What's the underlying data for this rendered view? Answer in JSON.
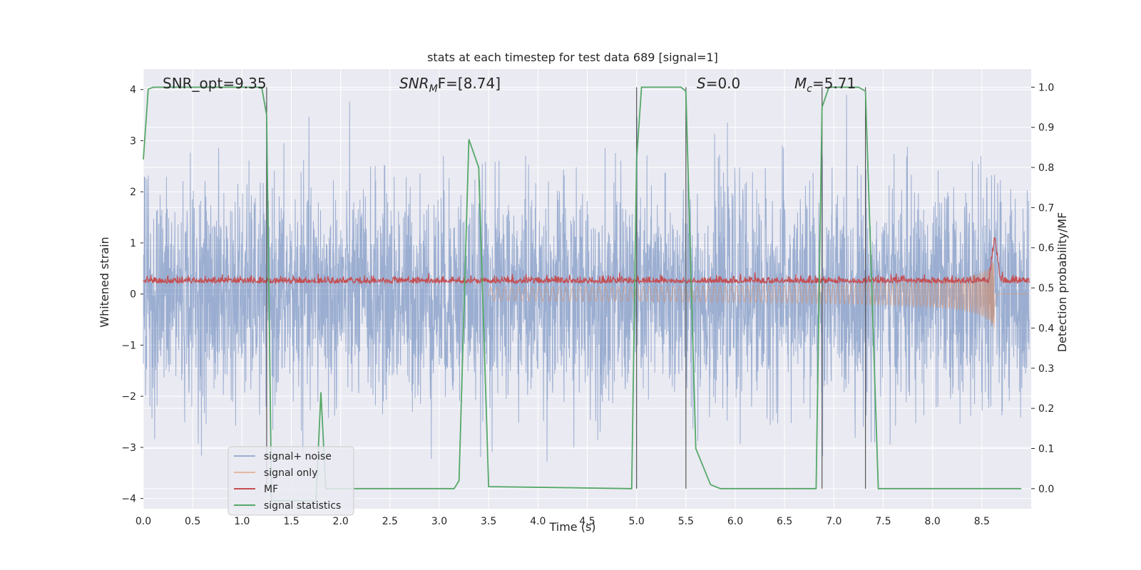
{
  "chart_data": {
    "type": "line",
    "title": "stats at each timestep for test data 689 [signal=1]",
    "xlabel": "Time (s)",
    "ylabel_left": "Whitened strain",
    "ylabel_right": "Detection probability/MF",
    "xlim": [
      0.0,
      9.0
    ],
    "ylim_left": [
      -4.2,
      4.4
    ],
    "ylim_right": [
      -0.05,
      1.045
    ],
    "xticks": [
      0.0,
      0.5,
      1.0,
      1.5,
      2.0,
      2.5,
      3.0,
      3.5,
      4.0,
      4.5,
      5.0,
      5.5,
      6.0,
      6.5,
      7.0,
      7.5,
      8.0,
      8.5
    ],
    "yticks_left": [
      -4,
      -3,
      -2,
      -1,
      0,
      1,
      2,
      3,
      4
    ],
    "yticks_right": [
      0.0,
      0.1,
      0.2,
      0.3,
      0.4,
      0.5,
      0.6,
      0.7,
      0.8,
      0.9,
      1.0
    ],
    "grid": true,
    "legend_position": "lower-left",
    "annotations": {
      "snr_opt": "SNR_opt=9.35",
      "snr_mf_base": "SNR",
      "snr_mf_sub": "M",
      "snr_mf_rest": "F=[8.74]",
      "s_var": "S",
      "s_rest": "=0.0",
      "mc_var": "M",
      "mc_sub": "c",
      "mc_rest": "=5.71"
    },
    "series": [
      {
        "name": "signal+ noise",
        "color": "#4c72b0",
        "axis": "left",
        "description_of_values": "dense whitened strain noise, roughly within -3.7 to 3.9"
      },
      {
        "name": "signal only",
        "color": "#dd8452",
        "axis": "left",
        "description_of_values": "chirp with growing amplitude, peaking near t=8.63 s"
      },
      {
        "name": "MF",
        "color": "#c44e52",
        "axis": "right",
        "description_of_values": "matched-filter output around 0.51-0.54, peak ~0.62 at t=8.63 s"
      },
      {
        "name": "signal statistics",
        "color": "#55a868",
        "axis": "right",
        "x": [
          0.0,
          0.05,
          0.1,
          0.5,
          1.0,
          1.2,
          1.25,
          1.3,
          1.75,
          1.8,
          1.85,
          3.15,
          3.2,
          3.3,
          3.4,
          3.5,
          4.95,
          5.0,
          5.05,
          5.45,
          5.5,
          5.6,
          5.7,
          5.75,
          5.85,
          6.82,
          6.88,
          6.95,
          7.25,
          7.32,
          7.45,
          8.9
        ],
        "values": [
          0.82,
          0.995,
          1.0,
          1.0,
          1.0,
          1.0,
          0.93,
          -0.03,
          -0.03,
          0.24,
          0.0,
          0.0,
          0.02,
          0.87,
          0.8,
          0.005,
          0.0,
          0.82,
          1.0,
          1.0,
          0.99,
          0.1,
          0.04,
          0.01,
          0.0,
          0.0,
          0.95,
          1.0,
          1.0,
          0.99,
          0.0,
          0.0
        ]
      }
    ],
    "vertical_lines_x": [
      1.25,
      5.0,
      5.5,
      6.88,
      7.32
    ],
    "vertical_line_color": "#555555"
  }
}
